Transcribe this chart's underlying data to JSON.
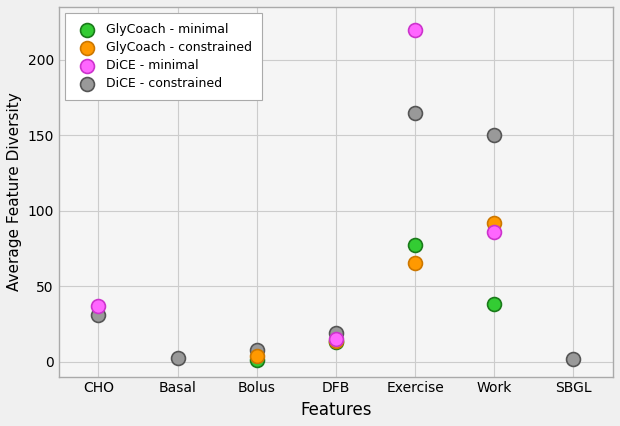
{
  "categories": [
    "CHO",
    "Basal",
    "Bolus",
    "DFB",
    "Exercise",
    "Work",
    "SBGL"
  ],
  "series": [
    {
      "name": "GlyCoach - minimal",
      "color": "#33cc33",
      "edgecolor": "#1a7a1a",
      "values": [
        null,
        null,
        1.0,
        13.0,
        77.0,
        38.0,
        null
      ],
      "zorder": 4
    },
    {
      "name": "GlyCoach - constrained",
      "color": "#ff9900",
      "edgecolor": "#cc7700",
      "values": [
        null,
        null,
        4.0,
        13.5,
        65.0,
        92.0,
        null
      ],
      "zorder": 4
    },
    {
      "name": "DiCE - minimal",
      "color": "#ff66ff",
      "edgecolor": "#cc33cc",
      "values": [
        37.0,
        null,
        null,
        15.0,
        220.0,
        86.0,
        null
      ],
      "zorder": 5
    },
    {
      "name": "DiCE - constrained",
      "color": "#999999",
      "edgecolor": "#555555",
      "values": [
        31.0,
        2.5,
        7.5,
        19.0,
        165.0,
        150.0,
        2.0
      ],
      "zorder": 3
    }
  ],
  "xlabel": "Features",
  "ylabel": "Average Feature Diversity",
  "xlim": [
    -0.5,
    6.5
  ],
  "ylim": [
    -10,
    235
  ],
  "yticks": [
    0,
    50,
    100,
    150,
    200
  ],
  "marker_size": 100,
  "linewidths": 1.2,
  "plot_bgcolor": "#f5f5f5",
  "fig_bgcolor": "#f0f0f0",
  "grid_color": "#cccccc",
  "grid_linewidth": 0.8,
  "spine_color": "#aaaaaa",
  "figsize": [
    6.2,
    4.26
  ],
  "dpi": 100,
  "xlabel_fontsize": 12,
  "ylabel_fontsize": 11,
  "tick_fontsize": 10,
  "legend_fontsize": 9
}
